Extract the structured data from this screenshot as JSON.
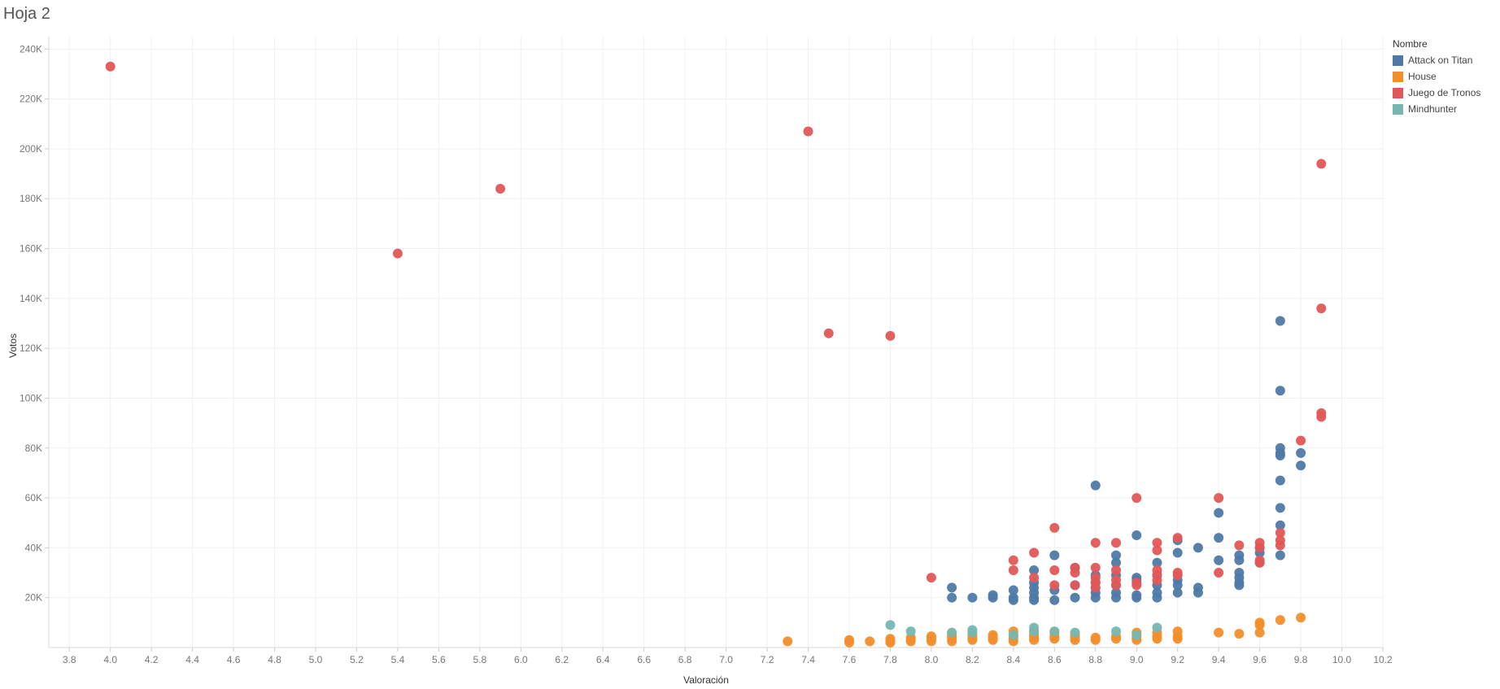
{
  "sheet": {
    "title": "Hoja 2"
  },
  "legend": {
    "title": "Nombre",
    "items": [
      {
        "label": "Attack on Titan",
        "color": "#4e79a7"
      },
      {
        "label": "House",
        "color": "#f28e2b"
      },
      {
        "label": "Juego de Tronos",
        "color": "#e15759"
      },
      {
        "label": "Mindhunter",
        "color": "#76b7b2"
      }
    ]
  },
  "chart_data": {
    "type": "scatter",
    "xlabel": "Valoración",
    "ylabel": "Votos",
    "xlim": [
      3.7,
      10.2
    ],
    "ylim": [
      0,
      245000
    ],
    "xticks": [
      "3.8",
      "4.0",
      "4.2",
      "4.4",
      "4.6",
      "4.8",
      "5.0",
      "5.2",
      "5.4",
      "5.6",
      "5.8",
      "6.0",
      "6.2",
      "6.4",
      "6.6",
      "6.8",
      "7.0",
      "7.2",
      "7.4",
      "7.6",
      "7.8",
      "8.0",
      "8.2",
      "8.4",
      "8.6",
      "8.8",
      "9.0",
      "9.2",
      "9.4",
      "9.6",
      "9.8",
      "10.0",
      "10.2"
    ],
    "xtick_values": [
      3.8,
      4.0,
      4.2,
      4.4,
      4.6,
      4.8,
      5.0,
      5.2,
      5.4,
      5.6,
      5.8,
      6.0,
      6.2,
      6.4,
      6.6,
      6.8,
      7.0,
      7.2,
      7.4,
      7.6,
      7.8,
      8.0,
      8.2,
      8.4,
      8.6,
      8.8,
      9.0,
      9.2,
      9.4,
      9.6,
      9.8,
      10.0,
      10.2
    ],
    "yticks": [
      "20K",
      "40K",
      "60K",
      "80K",
      "100K",
      "120K",
      "140K",
      "160K",
      "180K",
      "200K",
      "220K",
      "240K"
    ],
    "ytick_values": [
      20000,
      40000,
      60000,
      80000,
      100000,
      120000,
      140000,
      160000,
      180000,
      200000,
      220000,
      240000
    ],
    "grid": true,
    "legend_position": "right",
    "series": [
      {
        "name": "Attack on Titan",
        "color": "#4e79a7",
        "points": [
          [
            8.1,
            24000
          ],
          [
            8.1,
            20000
          ],
          [
            8.2,
            20000
          ],
          [
            8.3,
            21000
          ],
          [
            8.3,
            20000
          ],
          [
            8.4,
            23000
          ],
          [
            8.4,
            20000
          ],
          [
            8.4,
            19000
          ],
          [
            8.5,
            31000
          ],
          [
            8.5,
            26000
          ],
          [
            8.5,
            24000
          ],
          [
            8.5,
            22000
          ],
          [
            8.5,
            20000
          ],
          [
            8.5,
            19000
          ],
          [
            8.6,
            37000
          ],
          [
            8.6,
            23000
          ],
          [
            8.6,
            19000
          ],
          [
            8.7,
            32000
          ],
          [
            8.7,
            25000
          ],
          [
            8.7,
            20000
          ],
          [
            8.8,
            65000
          ],
          [
            8.8,
            29000
          ],
          [
            8.8,
            26000
          ],
          [
            8.8,
            24000
          ],
          [
            8.8,
            22000
          ],
          [
            8.8,
            20000
          ],
          [
            8.9,
            37000
          ],
          [
            8.9,
            34000
          ],
          [
            8.9,
            29000
          ],
          [
            8.9,
            25000
          ],
          [
            8.9,
            22000
          ],
          [
            8.9,
            20000
          ],
          [
            9.0,
            45000
          ],
          [
            9.0,
            28000
          ],
          [
            9.0,
            27000
          ],
          [
            9.0,
            21000
          ],
          [
            9.0,
            20000
          ],
          [
            9.1,
            34000
          ],
          [
            9.1,
            29000
          ],
          [
            9.1,
            25000
          ],
          [
            9.1,
            22000
          ],
          [
            9.1,
            20000
          ],
          [
            9.2,
            43000
          ],
          [
            9.2,
            38000
          ],
          [
            9.2,
            27000
          ],
          [
            9.2,
            25000
          ],
          [
            9.2,
            22000
          ],
          [
            9.3,
            40000
          ],
          [
            9.3,
            24000
          ],
          [
            9.3,
            22000
          ],
          [
            9.4,
            54000
          ],
          [
            9.4,
            44000
          ],
          [
            9.4,
            35000
          ],
          [
            9.5,
            37000
          ],
          [
            9.5,
            35000
          ],
          [
            9.5,
            30000
          ],
          [
            9.5,
            28000
          ],
          [
            9.5,
            26000
          ],
          [
            9.5,
            25000
          ],
          [
            9.6,
            40000
          ],
          [
            9.6,
            38000
          ],
          [
            9.6,
            34000
          ],
          [
            9.7,
            131000
          ],
          [
            9.7,
            103000
          ],
          [
            9.7,
            80000
          ],
          [
            9.7,
            78000
          ],
          [
            9.7,
            77000
          ],
          [
            9.7,
            67000
          ],
          [
            9.7,
            56000
          ],
          [
            9.7,
            49000
          ],
          [
            9.7,
            37000
          ],
          [
            9.8,
            78000
          ],
          [
            9.8,
            73000
          ]
        ]
      },
      {
        "name": "House",
        "color": "#f28e2b",
        "points": [
          [
            7.3,
            2500
          ],
          [
            7.6,
            3000
          ],
          [
            7.6,
            2000
          ],
          [
            7.7,
            2500
          ],
          [
            7.8,
            3500
          ],
          [
            7.8,
            2500
          ],
          [
            7.8,
            2000
          ],
          [
            7.9,
            4000
          ],
          [
            7.9,
            3000
          ],
          [
            7.9,
            2500
          ],
          [
            8.0,
            4500
          ],
          [
            8.0,
            3500
          ],
          [
            8.0,
            2500
          ],
          [
            8.1,
            5500
          ],
          [
            8.1,
            4500
          ],
          [
            8.1,
            3500
          ],
          [
            8.1,
            2500
          ],
          [
            8.2,
            5000
          ],
          [
            8.2,
            4000
          ],
          [
            8.2,
            3000
          ],
          [
            8.3,
            5000
          ],
          [
            8.3,
            4000
          ],
          [
            8.3,
            3000
          ],
          [
            8.4,
            6500
          ],
          [
            8.4,
            4500
          ],
          [
            8.4,
            3500
          ],
          [
            8.4,
            2500
          ],
          [
            8.5,
            6500
          ],
          [
            8.5,
            5000
          ],
          [
            8.5,
            4000
          ],
          [
            8.5,
            3000
          ],
          [
            8.6,
            6000
          ],
          [
            8.6,
            4500
          ],
          [
            8.6,
            3500
          ],
          [
            8.7,
            5000
          ],
          [
            8.7,
            4000
          ],
          [
            8.7,
            3000
          ],
          [
            8.8,
            4000
          ],
          [
            8.8,
            3000
          ],
          [
            8.9,
            4500
          ],
          [
            8.9,
            3500
          ],
          [
            9.0,
            6000
          ],
          [
            9.0,
            4000
          ],
          [
            9.0,
            3000
          ],
          [
            9.1,
            6000
          ],
          [
            9.1,
            4500
          ],
          [
            9.1,
            3500
          ],
          [
            9.2,
            6500
          ],
          [
            9.2,
            4500
          ],
          [
            9.2,
            3500
          ],
          [
            9.4,
            6000
          ],
          [
            9.5,
            5500
          ],
          [
            9.6,
            10000
          ],
          [
            9.6,
            9000
          ],
          [
            9.6,
            6000
          ],
          [
            9.7,
            11000
          ],
          [
            9.8,
            12000
          ]
        ]
      },
      {
        "name": "Juego de Tronos",
        "color": "#e15759",
        "points": [
          [
            4.0,
            233000
          ],
          [
            5.4,
            158000
          ],
          [
            5.9,
            184000
          ],
          [
            7.4,
            207000
          ],
          [
            7.5,
            126000
          ],
          [
            7.8,
            125000
          ],
          [
            8.0,
            28000
          ],
          [
            8.4,
            35000
          ],
          [
            8.4,
            31000
          ],
          [
            8.5,
            38000
          ],
          [
            8.5,
            28000
          ],
          [
            8.6,
            48000
          ],
          [
            8.6,
            31000
          ],
          [
            8.6,
            25000
          ],
          [
            8.7,
            32000
          ],
          [
            8.7,
            30000
          ],
          [
            8.7,
            25000
          ],
          [
            8.8,
            42000
          ],
          [
            8.8,
            32000
          ],
          [
            8.8,
            28000
          ],
          [
            8.8,
            26000
          ],
          [
            8.8,
            24000
          ],
          [
            8.9,
            42000
          ],
          [
            8.9,
            31000
          ],
          [
            8.9,
            27000
          ],
          [
            8.9,
            25000
          ],
          [
            9.0,
            60000
          ],
          [
            9.0,
            26000
          ],
          [
            9.0,
            25000
          ],
          [
            9.1,
            42000
          ],
          [
            9.1,
            39000
          ],
          [
            9.1,
            31000
          ],
          [
            9.1,
            29000
          ],
          [
            9.1,
            27000
          ],
          [
            9.2,
            44000
          ],
          [
            9.2,
            30000
          ],
          [
            9.2,
            29000
          ],
          [
            9.4,
            60000
          ],
          [
            9.4,
            30000
          ],
          [
            9.5,
            41000
          ],
          [
            9.6,
            42000
          ],
          [
            9.6,
            40000
          ],
          [
            9.6,
            35000
          ],
          [
            9.6,
            34000
          ],
          [
            9.7,
            46000
          ],
          [
            9.7,
            43000
          ],
          [
            9.7,
            41000
          ],
          [
            9.8,
            83000
          ],
          [
            9.9,
            194000
          ],
          [
            9.9,
            136000
          ],
          [
            9.9,
            94000
          ],
          [
            9.9,
            92500
          ]
        ]
      },
      {
        "name": "Mindhunter",
        "color": "#76b7b2",
        "points": [
          [
            7.8,
            9000
          ],
          [
            7.9,
            6500
          ],
          [
            8.1,
            6000
          ],
          [
            8.2,
            7000
          ],
          [
            8.2,
            6000
          ],
          [
            8.4,
            5000
          ],
          [
            8.5,
            8000
          ],
          [
            8.5,
            6500
          ],
          [
            8.6,
            6500
          ],
          [
            8.7,
            6000
          ],
          [
            8.9,
            6500
          ],
          [
            9.0,
            5000
          ],
          [
            9.1,
            8000
          ]
        ]
      }
    ]
  }
}
